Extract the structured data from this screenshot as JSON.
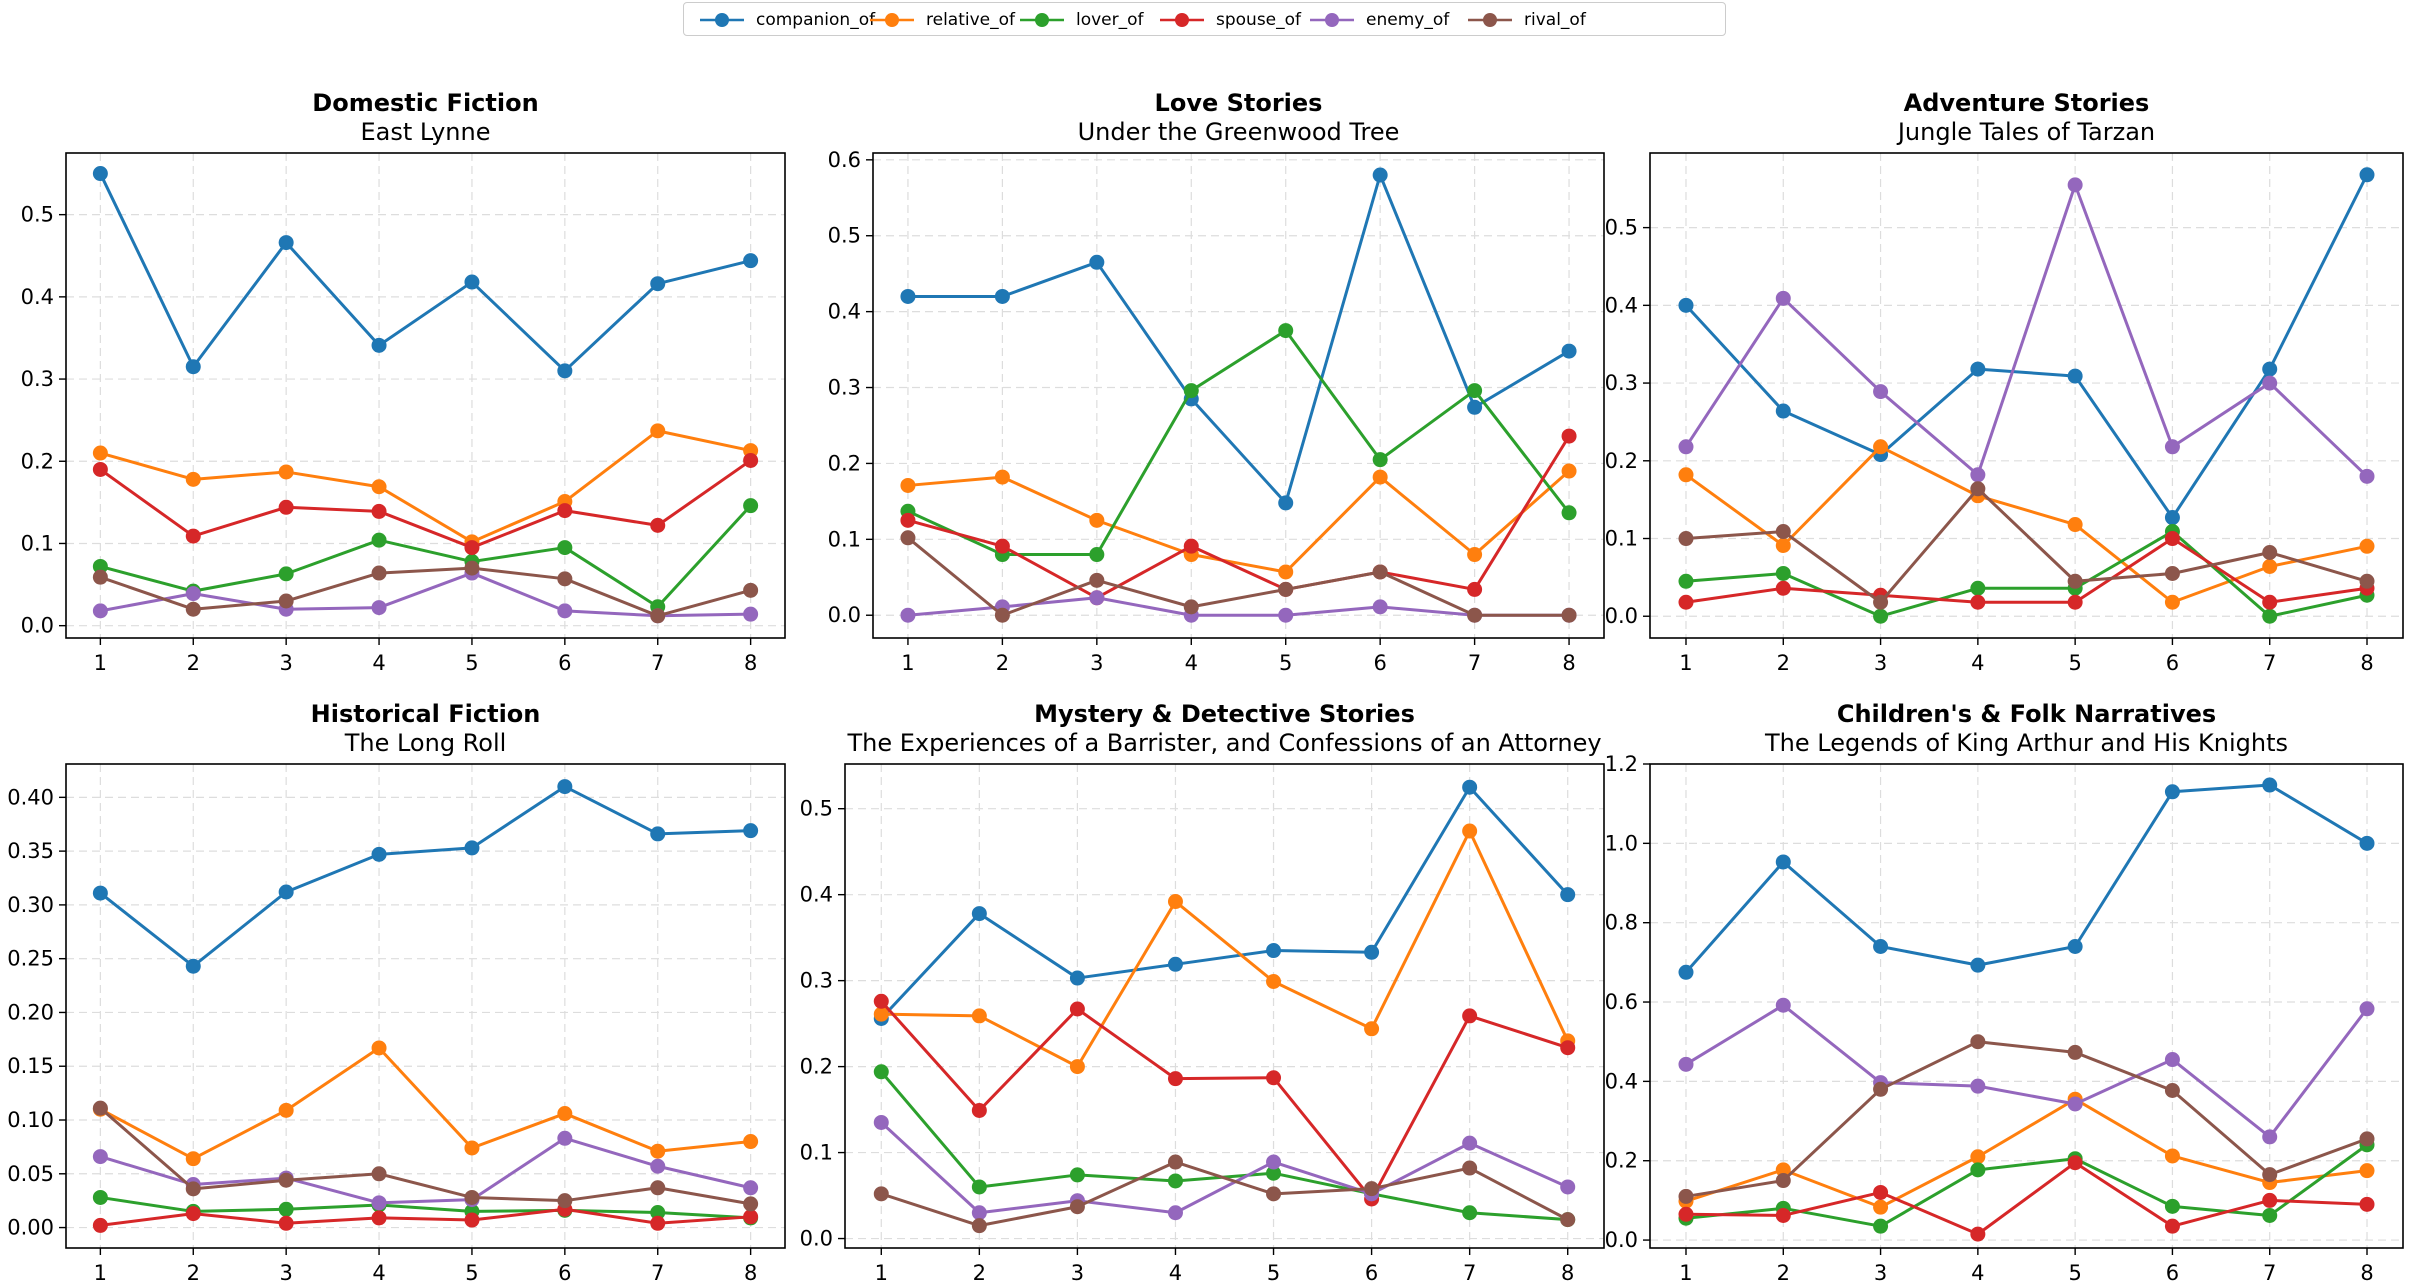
{
  "legend": {
    "items": [
      {
        "name": "companion_of",
        "color": "#1f77b4"
      },
      {
        "name": "relative_of",
        "color": "#ff7f0e"
      },
      {
        "name": "lover_of",
        "color": "#2ca02c"
      },
      {
        "name": "spouse_of",
        "color": "#d62728"
      },
      {
        "name": "enemy_of",
        "color": "#9467bd"
      },
      {
        "name": "rival_of",
        "color": "#8c564b"
      }
    ]
  },
  "chart_data": [
    {
      "type": "line",
      "title": "Domestic Fiction",
      "subtitle": "East Lynne",
      "x": [
        1,
        2,
        3,
        4,
        5,
        6,
        7,
        8
      ],
      "ylim": [
        -0.015,
        0.575
      ],
      "yticks": [
        0.0,
        0.1,
        0.2,
        0.3,
        0.4,
        0.5
      ],
      "ytick_labels": [
        "0.0",
        "0.1",
        "0.2",
        "0.3",
        "0.4",
        "0.5"
      ],
      "grid": true,
      "series": [
        {
          "name": "companion_of",
          "values": [
            0.55,
            0.315,
            0.466,
            0.341,
            0.418,
            0.31,
            0.416,
            0.444
          ]
        },
        {
          "name": "relative_of",
          "values": [
            0.21,
            0.178,
            0.187,
            0.169,
            0.102,
            0.151,
            0.237,
            0.213
          ]
        },
        {
          "name": "lover_of",
          "values": [
            0.072,
            0.042,
            0.063,
            0.104,
            0.078,
            0.095,
            0.023,
            0.146
          ]
        },
        {
          "name": "spouse_of",
          "values": [
            0.19,
            0.109,
            0.144,
            0.139,
            0.095,
            0.14,
            0.122,
            0.201
          ]
        },
        {
          "name": "enemy_of",
          "values": [
            0.018,
            0.039,
            0.02,
            0.022,
            0.064,
            0.018,
            0.012,
            0.014
          ]
        },
        {
          "name": "rival_of",
          "values": [
            0.059,
            0.02,
            0.03,
            0.064,
            0.07,
            0.057,
            0.012,
            0.043
          ]
        }
      ]
    },
    {
      "type": "line",
      "title": "Love Stories",
      "subtitle": "Under the Greenwood Tree",
      "x": [
        1,
        2,
        3,
        4,
        5,
        6,
        7,
        8
      ],
      "ylim": [
        -0.03,
        0.609
      ],
      "yticks": [
        0.0,
        0.1,
        0.2,
        0.3,
        0.4,
        0.5,
        0.6
      ],
      "ytick_labels": [
        "0.0",
        "0.1",
        "0.2",
        "0.3",
        "0.4",
        "0.5",
        "0.6"
      ],
      "grid": true,
      "series": [
        {
          "name": "companion_of",
          "values": [
            0.42,
            0.42,
            0.465,
            0.285,
            0.148,
            0.58,
            0.274,
            0.348
          ]
        },
        {
          "name": "relative_of",
          "values": [
            0.171,
            0.182,
            0.125,
            0.08,
            0.057,
            0.182,
            0.08,
            0.19
          ]
        },
        {
          "name": "lover_of",
          "values": [
            0.137,
            0.08,
            0.08,
            0.296,
            0.375,
            0.205,
            0.296,
            0.135
          ]
        },
        {
          "name": "spouse_of",
          "values": [
            0.125,
            0.091,
            0.023,
            0.091,
            0.034,
            0.057,
            0.034,
            0.236
          ]
        },
        {
          "name": "enemy_of",
          "values": [
            0.0,
            0.011,
            0.023,
            0.0,
            0.0,
            0.011,
            0.0,
            0.0
          ]
        },
        {
          "name": "rival_of",
          "values": [
            0.102,
            0.0,
            0.046,
            0.011,
            0.034,
            0.057,
            0.0,
            0.0
          ]
        }
      ]
    },
    {
      "type": "line",
      "title": "Adventure Stories",
      "subtitle": "Jungle Tales of Tarzan",
      "x": [
        1,
        2,
        3,
        4,
        5,
        6,
        7,
        8
      ],
      "ylim": [
        -0.028,
        0.596
      ],
      "yticks": [
        0.0,
        0.1,
        0.2,
        0.3,
        0.4,
        0.5
      ],
      "ytick_labels": [
        "0.0",
        "0.1",
        "0.2",
        "0.3",
        "0.4",
        "0.5"
      ],
      "grid": true,
      "series": [
        {
          "name": "companion_of",
          "values": [
            0.4,
            0.264,
            0.208,
            0.318,
            0.309,
            0.127,
            0.318,
            0.568
          ]
        },
        {
          "name": "relative_of",
          "values": [
            0.182,
            0.091,
            0.218,
            0.155,
            0.118,
            0.018,
            0.064,
            0.09
          ]
        },
        {
          "name": "lover_of",
          "values": [
            0.045,
            0.055,
            0.0,
            0.036,
            0.036,
            0.109,
            0.0,
            0.027
          ]
        },
        {
          "name": "spouse_of",
          "values": [
            0.018,
            0.036,
            0.027,
            0.018,
            0.018,
            0.1,
            0.018,
            0.036
          ]
        },
        {
          "name": "enemy_of",
          "values": [
            0.218,
            0.409,
            0.289,
            0.182,
            0.555,
            0.218,
            0.3,
            0.18
          ]
        },
        {
          "name": "rival_of",
          "values": [
            0.1,
            0.109,
            0.018,
            0.164,
            0.045,
            0.055,
            0.082,
            0.045
          ]
        }
      ]
    },
    {
      "type": "line",
      "title": "Historical Fiction",
      "subtitle": "The Long Roll",
      "x": [
        1,
        2,
        3,
        4,
        5,
        6,
        7,
        8
      ],
      "ylim": [
        -0.019,
        0.431
      ],
      "yticks": [
        0.0,
        0.05,
        0.1,
        0.15,
        0.2,
        0.25,
        0.3,
        0.35,
        0.4
      ],
      "ytick_labels": [
        "0.00",
        "0.05",
        "0.10",
        "0.15",
        "0.20",
        "0.25",
        "0.30",
        "0.35",
        "0.40"
      ],
      "grid": true,
      "series": [
        {
          "name": "companion_of",
          "values": [
            0.311,
            0.243,
            0.312,
            0.347,
            0.353,
            0.41,
            0.366,
            0.369
          ]
        },
        {
          "name": "relative_of",
          "values": [
            0.11,
            0.064,
            0.109,
            0.167,
            0.074,
            0.106,
            0.071,
            0.08
          ]
        },
        {
          "name": "lover_of",
          "values": [
            0.028,
            0.015,
            0.017,
            0.021,
            0.015,
            0.016,
            0.014,
            0.009
          ]
        },
        {
          "name": "spouse_of",
          "values": [
            0.002,
            0.013,
            0.004,
            0.009,
            0.007,
            0.017,
            0.004,
            0.01
          ]
        },
        {
          "name": "enemy_of",
          "values": [
            0.066,
            0.04,
            0.046,
            0.023,
            0.026,
            0.083,
            0.057,
            0.037
          ]
        },
        {
          "name": "rival_of",
          "values": [
            0.111,
            0.036,
            0.044,
            0.05,
            0.028,
            0.025,
            0.037,
            0.022
          ]
        }
      ]
    },
    {
      "type": "line",
      "title": "Mystery & Detective Stories",
      "subtitle": "The Experiences of a Barrister, and Confessions of an Attorney",
      "x": [
        1,
        2,
        3,
        4,
        5,
        6,
        7,
        8
      ],
      "ylim": [
        -0.011,
        0.552
      ],
      "yticks": [
        0.0,
        0.1,
        0.2,
        0.3,
        0.4,
        0.5
      ],
      "ytick_labels": [
        "0.0",
        "0.1",
        "0.2",
        "0.3",
        "0.4",
        "0.5"
      ],
      "grid": true,
      "series": [
        {
          "name": "companion_of",
          "values": [
            0.256,
            0.378,
            0.303,
            0.319,
            0.335,
            0.333,
            0.525,
            0.4
          ]
        },
        {
          "name": "relative_of",
          "values": [
            0.261,
            0.259,
            0.2,
            0.392,
            0.299,
            0.244,
            0.474,
            0.23
          ]
        },
        {
          "name": "lover_of",
          "values": [
            0.194,
            0.06,
            0.074,
            0.067,
            0.076,
            0.052,
            0.03,
            0.022
          ]
        },
        {
          "name": "spouse_of",
          "values": [
            0.276,
            0.149,
            0.267,
            0.186,
            0.187,
            0.046,
            0.259,
            0.222
          ]
        },
        {
          "name": "enemy_of",
          "values": [
            0.135,
            0.03,
            0.044,
            0.03,
            0.089,
            0.052,
            0.111,
            0.06
          ]
        },
        {
          "name": "rival_of",
          "values": [
            0.052,
            0.015,
            0.037,
            0.089,
            0.052,
            0.058,
            0.082,
            0.022
          ]
        }
      ]
    },
    {
      "type": "line",
      "title": "Children's & Folk Narratives",
      "subtitle": "The Legends of King Arthur and His Knights",
      "x": [
        1,
        2,
        3,
        4,
        5,
        6,
        7,
        8
      ],
      "ylim": [
        -0.02,
        1.2
      ],
      "yticks": [
        0.0,
        0.2,
        0.4,
        0.6,
        0.8,
        1.0,
        1.2
      ],
      "ytick_labels": [
        "0.0",
        "0.2",
        "0.4",
        "0.6",
        "0.8",
        "1.0",
        "1.2"
      ],
      "grid": true,
      "series": [
        {
          "name": "companion_of",
          "values": [
            0.675,
            0.953,
            0.74,
            0.693,
            0.74,
            1.13,
            1.147,
            1.0
          ]
        },
        {
          "name": "relative_of",
          "values": [
            0.098,
            0.177,
            0.083,
            0.21,
            0.355,
            0.212,
            0.145,
            0.175
          ]
        },
        {
          "name": "lover_of",
          "values": [
            0.055,
            0.08,
            0.035,
            0.177,
            0.205,
            0.085,
            0.062,
            0.24
          ]
        },
        {
          "name": "spouse_of",
          "values": [
            0.065,
            0.062,
            0.12,
            0.015,
            0.195,
            0.035,
            0.1,
            0.09
          ]
        },
        {
          "name": "enemy_of",
          "values": [
            0.443,
            0.592,
            0.397,
            0.388,
            0.343,
            0.455,
            0.26,
            0.583
          ]
        },
        {
          "name": "rival_of",
          "values": [
            0.11,
            0.15,
            0.38,
            0.5,
            0.473,
            0.377,
            0.165,
            0.255
          ]
        }
      ]
    }
  ]
}
